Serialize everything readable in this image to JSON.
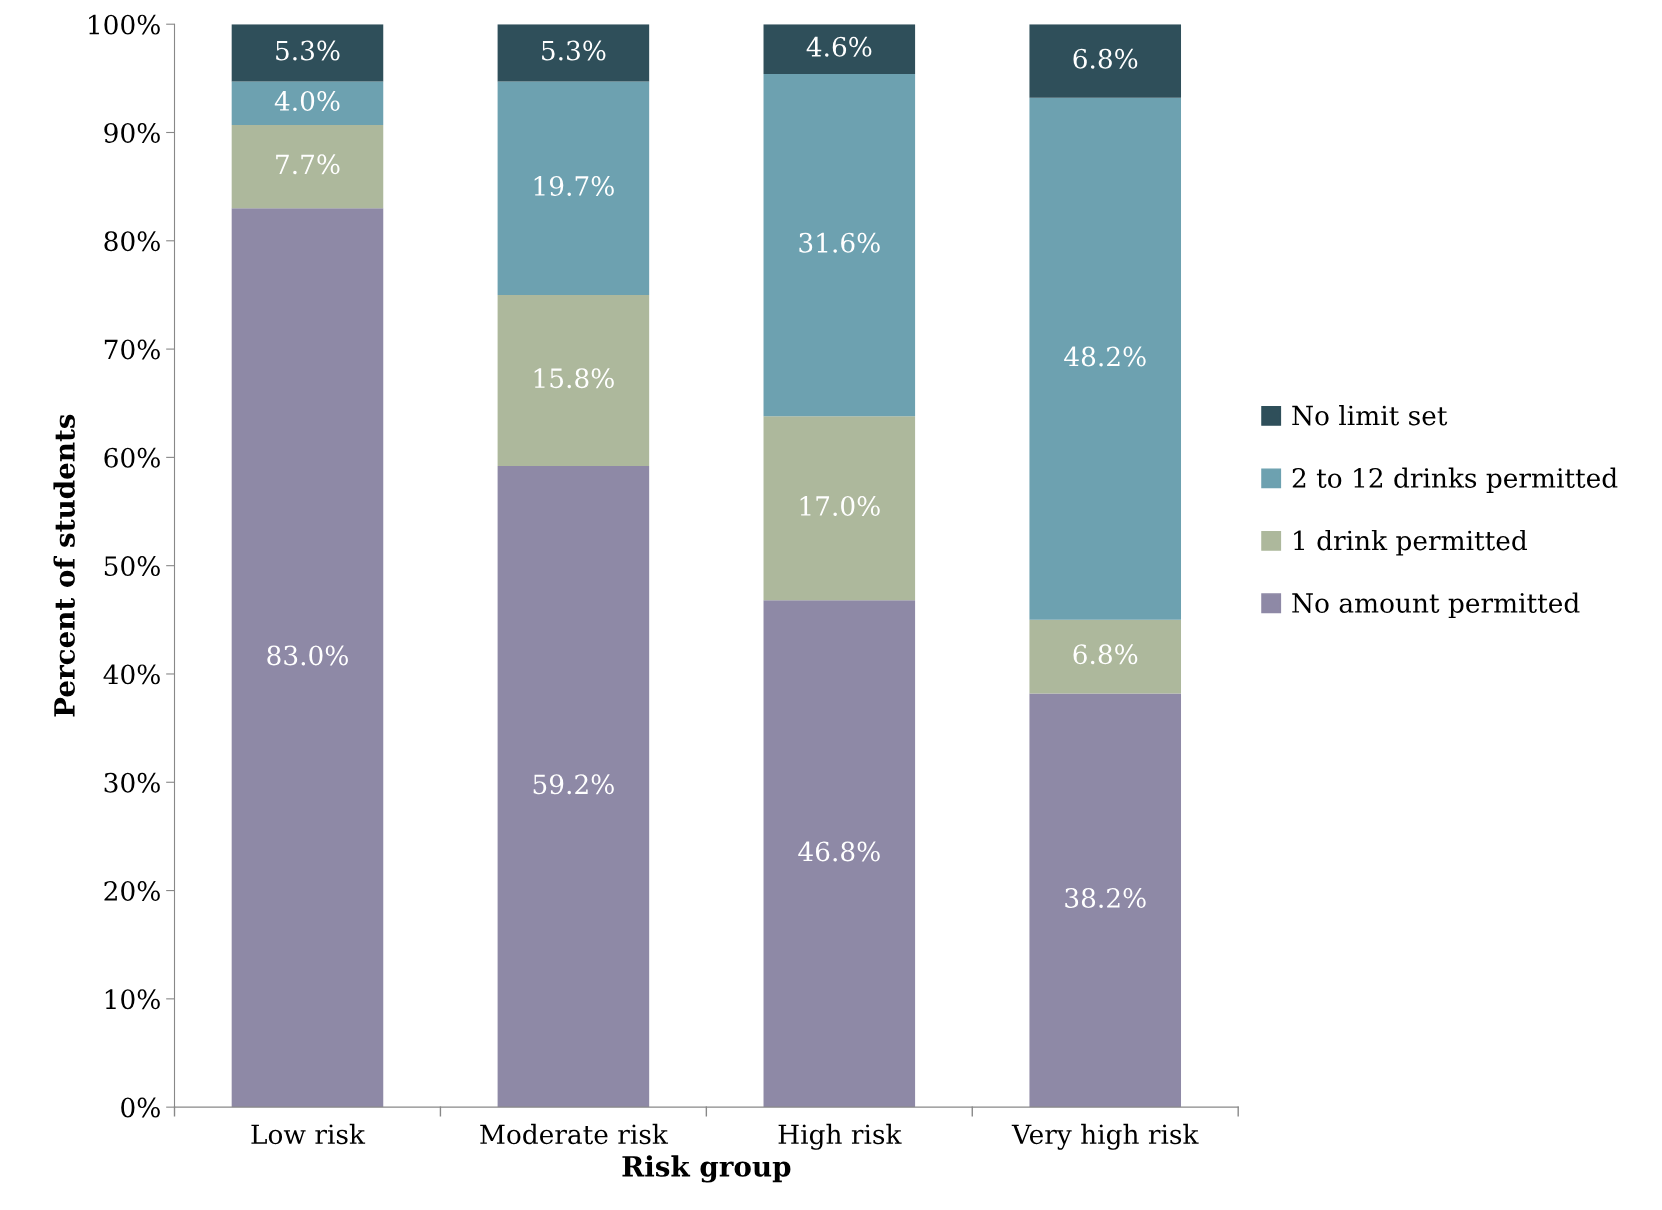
{
  "chart_data": {
    "type": "bar",
    "stacked": true,
    "xlabel": "Risk group",
    "ylabel": "Percent of students",
    "categories": [
      "Low risk",
      "Moderate risk",
      "High risk",
      "Very high risk"
    ],
    "series": [
      {
        "name": "No amount permitted",
        "color": "#8e89a6",
        "values": [
          83.0,
          59.2,
          46.8,
          38.2
        ],
        "value_labels": [
          "83.0%",
          "59.2%",
          "46.8%",
          "38.2%"
        ]
      },
      {
        "name": "1 drink permitted",
        "color": "#adb89c",
        "values": [
          7.7,
          15.8,
          17.0,
          6.8
        ],
        "value_labels": [
          "7.7%",
          "15.8%",
          "17.0%",
          "6.8%"
        ]
      },
      {
        "name": "2 to 12 drinks permitted",
        "color": "#6da1b0",
        "values": [
          4.0,
          19.7,
          31.6,
          48.2
        ],
        "value_labels": [
          "4.0%",
          "19.7%",
          "31.6%",
          "48.2%"
        ]
      },
      {
        "name": "No limit set",
        "color": "#2f4f5a",
        "values": [
          5.3,
          5.3,
          4.6,
          6.8
        ],
        "value_labels": [
          "5.3%",
          "5.3%",
          "4.6%",
          "6.8%"
        ]
      }
    ],
    "ylim": [
      0,
      100
    ],
    "yticks": [
      {
        "value": 0,
        "label": "0%"
      },
      {
        "value": 10,
        "label": "10%"
      },
      {
        "value": 20,
        "label": "20%"
      },
      {
        "value": 30,
        "label": "30%"
      },
      {
        "value": 40,
        "label": "40%"
      },
      {
        "value": 50,
        "label": "50%"
      },
      {
        "value": 60,
        "label": "60%"
      },
      {
        "value": 70,
        "label": "70%"
      },
      {
        "value": 80,
        "label": "80%"
      },
      {
        "value": 90,
        "label": "90%"
      },
      {
        "value": 100,
        "label": "100%"
      }
    ],
    "legend": "right",
    "grid": false
  }
}
